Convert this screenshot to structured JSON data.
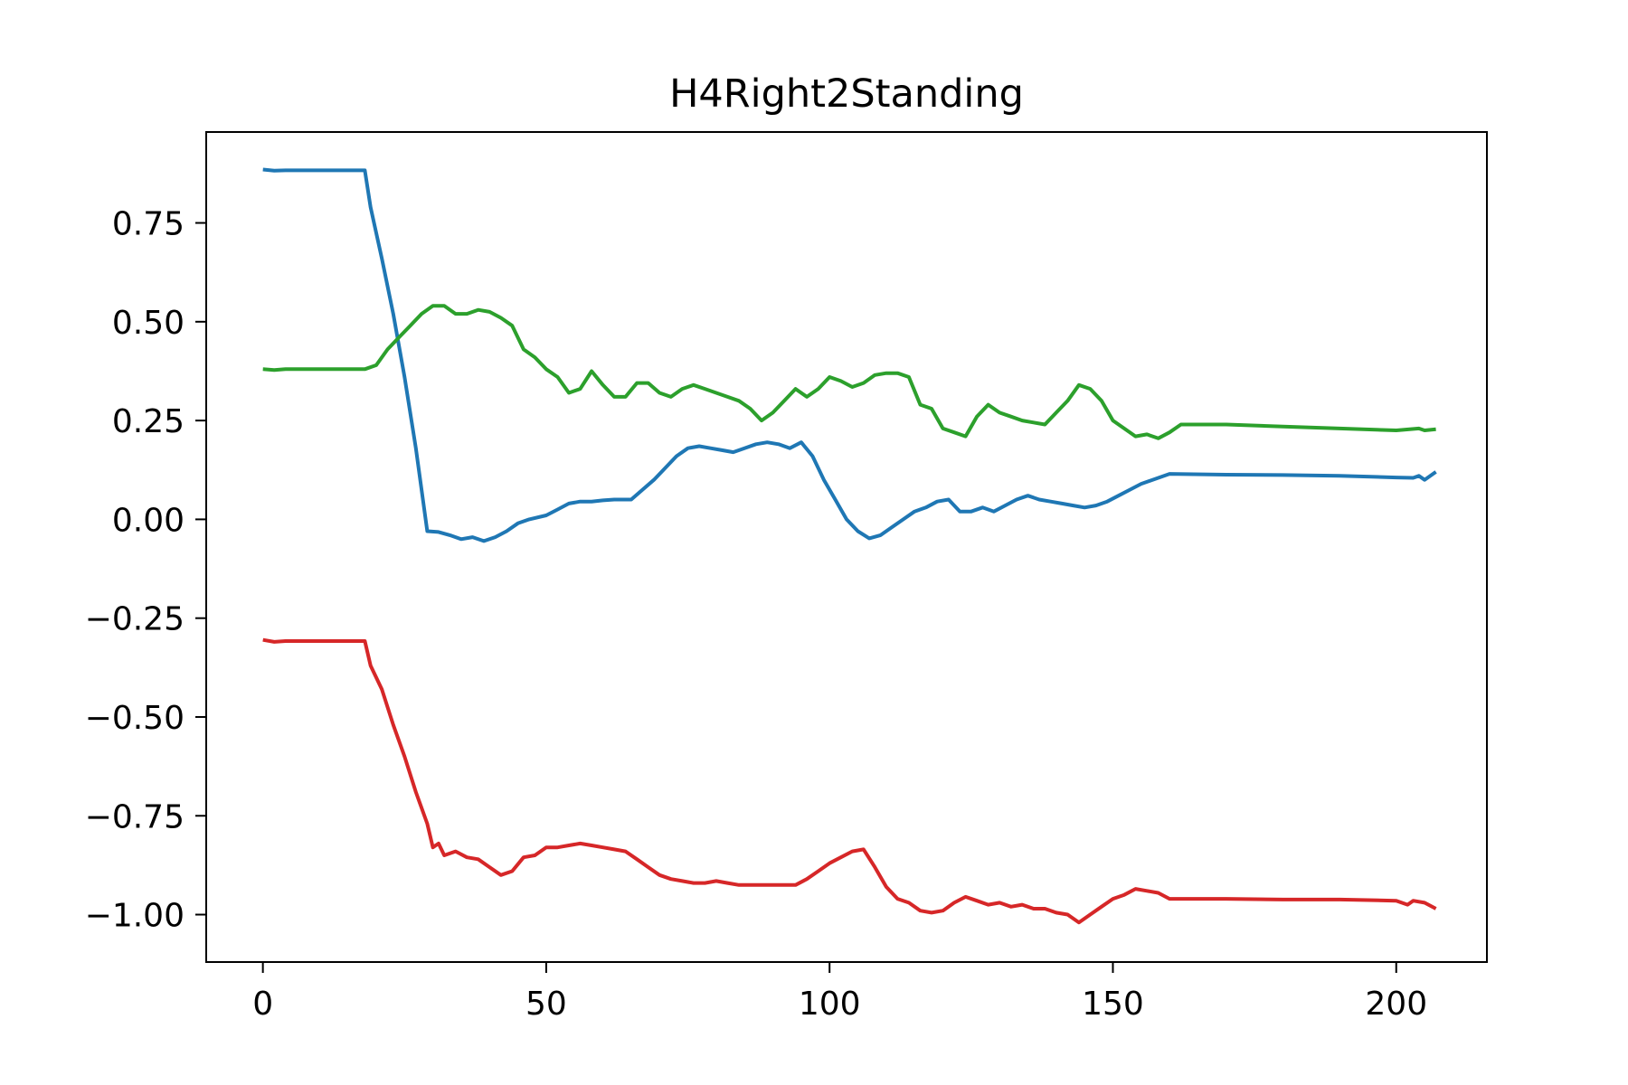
{
  "chart_data": {
    "type": "line",
    "title": "H4Right2Standing",
    "xlabel": "",
    "ylabel": "",
    "xlim": [
      -10,
      216
    ],
    "ylim": [
      -1.12,
      0.98
    ],
    "grid": false,
    "legend": "none",
    "x_ticks": [
      0,
      50,
      100,
      150,
      200
    ],
    "x_tick_labels": [
      "0",
      "50",
      "100",
      "150",
      "200"
    ],
    "y_ticks": [
      0.75,
      0.5,
      0.25,
      0.0,
      -0.25,
      -0.5,
      -0.75,
      -1.0
    ],
    "y_tick_labels": [
      "0.75",
      "0.50",
      "0.25",
      "0.00",
      "−0.25",
      "−0.50",
      "−0.75",
      "−1.00"
    ],
    "series": [
      {
        "color": "#1f77b4",
        "points": [
          [
            0,
            0.885
          ],
          [
            2,
            0.882
          ],
          [
            4,
            0.883
          ],
          [
            10,
            0.883
          ],
          [
            18,
            0.883
          ],
          [
            19,
            0.79
          ],
          [
            21,
            0.66
          ],
          [
            23,
            0.52
          ],
          [
            25,
            0.36
          ],
          [
            27,
            0.18
          ],
          [
            29,
            -0.03
          ],
          [
            31,
            -0.032
          ],
          [
            33,
            -0.04
          ],
          [
            35,
            -0.05
          ],
          [
            37,
            -0.045
          ],
          [
            39,
            -0.055
          ],
          [
            41,
            -0.045
          ],
          [
            43,
            -0.03
          ],
          [
            45,
            -0.01
          ],
          [
            47,
            0.0
          ],
          [
            50,
            0.01
          ],
          [
            52,
            0.025
          ],
          [
            54,
            0.04
          ],
          [
            56,
            0.045
          ],
          [
            58,
            0.045
          ],
          [
            60,
            0.048
          ],
          [
            62,
            0.05
          ],
          [
            65,
            0.05
          ],
          [
            67,
            0.075
          ],
          [
            69,
            0.1
          ],
          [
            71,
            0.13
          ],
          [
            73,
            0.16
          ],
          [
            75,
            0.18
          ],
          [
            77,
            0.185
          ],
          [
            79,
            0.18
          ],
          [
            81,
            0.175
          ],
          [
            83,
            0.17
          ],
          [
            85,
            0.18
          ],
          [
            87,
            0.19
          ],
          [
            89,
            0.195
          ],
          [
            91,
            0.19
          ],
          [
            93,
            0.18
          ],
          [
            95,
            0.195
          ],
          [
            97,
            0.16
          ],
          [
            99,
            0.1
          ],
          [
            101,
            0.05
          ],
          [
            103,
            0.0
          ],
          [
            105,
            -0.03
          ],
          [
            107,
            -0.048
          ],
          [
            109,
            -0.04
          ],
          [
            111,
            -0.02
          ],
          [
            113,
            0.0
          ],
          [
            115,
            0.02
          ],
          [
            117,
            0.03
          ],
          [
            119,
            0.045
          ],
          [
            121,
            0.05
          ],
          [
            123,
            0.02
          ],
          [
            125,
            0.02
          ],
          [
            127,
            0.03
          ],
          [
            129,
            0.02
          ],
          [
            131,
            0.035
          ],
          [
            133,
            0.05
          ],
          [
            135,
            0.06
          ],
          [
            137,
            0.05
          ],
          [
            139,
            0.045
          ],
          [
            141,
            0.04
          ],
          [
            143,
            0.035
          ],
          [
            145,
            0.03
          ],
          [
            147,
            0.035
          ],
          [
            149,
            0.045
          ],
          [
            151,
            0.06
          ],
          [
            153,
            0.075
          ],
          [
            155,
            0.09
          ],
          [
            157,
            0.1
          ],
          [
            160,
            0.115
          ],
          [
            170,
            0.113
          ],
          [
            180,
            0.112
          ],
          [
            190,
            0.11
          ],
          [
            200,
            0.106
          ],
          [
            203,
            0.105
          ],
          [
            204,
            0.11
          ],
          [
            205,
            0.1
          ],
          [
            207,
            0.12
          ]
        ]
      },
      {
        "color": "#2ca02c",
        "points": [
          [
            0,
            0.38
          ],
          [
            2,
            0.378
          ],
          [
            4,
            0.38
          ],
          [
            10,
            0.38
          ],
          [
            18,
            0.38
          ],
          [
            20,
            0.39
          ],
          [
            22,
            0.43
          ],
          [
            24,
            0.46
          ],
          [
            26,
            0.49
          ],
          [
            28,
            0.52
          ],
          [
            30,
            0.54
          ],
          [
            32,
            0.54
          ],
          [
            34,
            0.52
          ],
          [
            36,
            0.52
          ],
          [
            38,
            0.53
          ],
          [
            40,
            0.525
          ],
          [
            42,
            0.51
          ],
          [
            44,
            0.49
          ],
          [
            46,
            0.43
          ],
          [
            48,
            0.41
          ],
          [
            50,
            0.38
          ],
          [
            52,
            0.36
          ],
          [
            54,
            0.32
          ],
          [
            56,
            0.33
          ],
          [
            58,
            0.375
          ],
          [
            60,
            0.34
          ],
          [
            62,
            0.31
          ],
          [
            64,
            0.31
          ],
          [
            66,
            0.345
          ],
          [
            68,
            0.345
          ],
          [
            70,
            0.32
          ],
          [
            72,
            0.31
          ],
          [
            74,
            0.33
          ],
          [
            76,
            0.34
          ],
          [
            78,
            0.33
          ],
          [
            80,
            0.32
          ],
          [
            82,
            0.31
          ],
          [
            84,
            0.3
          ],
          [
            86,
            0.28
          ],
          [
            88,
            0.25
          ],
          [
            90,
            0.27
          ],
          [
            92,
            0.3
          ],
          [
            94,
            0.33
          ],
          [
            96,
            0.31
          ],
          [
            98,
            0.33
          ],
          [
            100,
            0.36
          ],
          [
            102,
            0.35
          ],
          [
            104,
            0.335
          ],
          [
            106,
            0.345
          ],
          [
            108,
            0.365
          ],
          [
            110,
            0.37
          ],
          [
            112,
            0.37
          ],
          [
            114,
            0.36
          ],
          [
            116,
            0.29
          ],
          [
            118,
            0.28
          ],
          [
            120,
            0.23
          ],
          [
            122,
            0.22
          ],
          [
            124,
            0.21
          ],
          [
            126,
            0.26
          ],
          [
            128,
            0.29
          ],
          [
            130,
            0.27
          ],
          [
            132,
            0.26
          ],
          [
            134,
            0.25
          ],
          [
            136,
            0.245
          ],
          [
            138,
            0.24
          ],
          [
            140,
            0.27
          ],
          [
            142,
            0.3
          ],
          [
            144,
            0.34
          ],
          [
            146,
            0.33
          ],
          [
            148,
            0.3
          ],
          [
            150,
            0.25
          ],
          [
            152,
            0.23
          ],
          [
            154,
            0.21
          ],
          [
            156,
            0.215
          ],
          [
            158,
            0.205
          ],
          [
            160,
            0.22
          ],
          [
            162,
            0.24
          ],
          [
            170,
            0.24
          ],
          [
            180,
            0.235
          ],
          [
            190,
            0.23
          ],
          [
            200,
            0.225
          ],
          [
            204,
            0.23
          ],
          [
            205,
            0.225
          ],
          [
            207,
            0.228
          ]
        ]
      },
      {
        "color": "#d62728",
        "points": [
          [
            0,
            -0.305
          ],
          [
            2,
            -0.31
          ],
          [
            4,
            -0.308
          ],
          [
            10,
            -0.308
          ],
          [
            18,
            -0.308
          ],
          [
            19,
            -0.37
          ],
          [
            21,
            -0.43
          ],
          [
            23,
            -0.52
          ],
          [
            25,
            -0.6
          ],
          [
            27,
            -0.69
          ],
          [
            29,
            -0.77
          ],
          [
            30,
            -0.83
          ],
          [
            31,
            -0.82
          ],
          [
            32,
            -0.85
          ],
          [
            34,
            -0.84
          ],
          [
            36,
            -0.855
          ],
          [
            38,
            -0.86
          ],
          [
            40,
            -0.88
          ],
          [
            42,
            -0.9
          ],
          [
            44,
            -0.89
          ],
          [
            46,
            -0.855
          ],
          [
            48,
            -0.85
          ],
          [
            50,
            -0.83
          ],
          [
            52,
            -0.83
          ],
          [
            54,
            -0.825
          ],
          [
            56,
            -0.82
          ],
          [
            58,
            -0.825
          ],
          [
            60,
            -0.83
          ],
          [
            62,
            -0.835
          ],
          [
            64,
            -0.84
          ],
          [
            66,
            -0.86
          ],
          [
            68,
            -0.88
          ],
          [
            70,
            -0.9
          ],
          [
            72,
            -0.91
          ],
          [
            74,
            -0.915
          ],
          [
            76,
            -0.92
          ],
          [
            78,
            -0.92
          ],
          [
            80,
            -0.915
          ],
          [
            82,
            -0.92
          ],
          [
            84,
            -0.925
          ],
          [
            86,
            -0.925
          ],
          [
            88,
            -0.925
          ],
          [
            90,
            -0.925
          ],
          [
            92,
            -0.925
          ],
          [
            94,
            -0.925
          ],
          [
            96,
            -0.91
          ],
          [
            98,
            -0.89
          ],
          [
            100,
            -0.87
          ],
          [
            102,
            -0.855
          ],
          [
            104,
            -0.84
          ],
          [
            106,
            -0.835
          ],
          [
            108,
            -0.88
          ],
          [
            110,
            -0.93
          ],
          [
            112,
            -0.96
          ],
          [
            114,
            -0.97
          ],
          [
            116,
            -0.99
          ],
          [
            118,
            -0.995
          ],
          [
            120,
            -0.99
          ],
          [
            122,
            -0.97
          ],
          [
            124,
            -0.955
          ],
          [
            126,
            -0.965
          ],
          [
            128,
            -0.975
          ],
          [
            130,
            -0.97
          ],
          [
            132,
            -0.98
          ],
          [
            134,
            -0.975
          ],
          [
            136,
            -0.985
          ],
          [
            138,
            -0.985
          ],
          [
            140,
            -0.995
          ],
          [
            142,
            -1.0
          ],
          [
            144,
            -1.02
          ],
          [
            146,
            -1.0
          ],
          [
            148,
            -0.98
          ],
          [
            150,
            -0.96
          ],
          [
            152,
            -0.95
          ],
          [
            154,
            -0.935
          ],
          [
            156,
            -0.94
          ],
          [
            158,
            -0.945
          ],
          [
            160,
            -0.96
          ],
          [
            170,
            -0.96
          ],
          [
            180,
            -0.962
          ],
          [
            190,
            -0.962
          ],
          [
            200,
            -0.965
          ],
          [
            202,
            -0.975
          ],
          [
            203,
            -0.965
          ],
          [
            205,
            -0.97
          ],
          [
            207,
            -0.985
          ]
        ]
      }
    ]
  }
}
